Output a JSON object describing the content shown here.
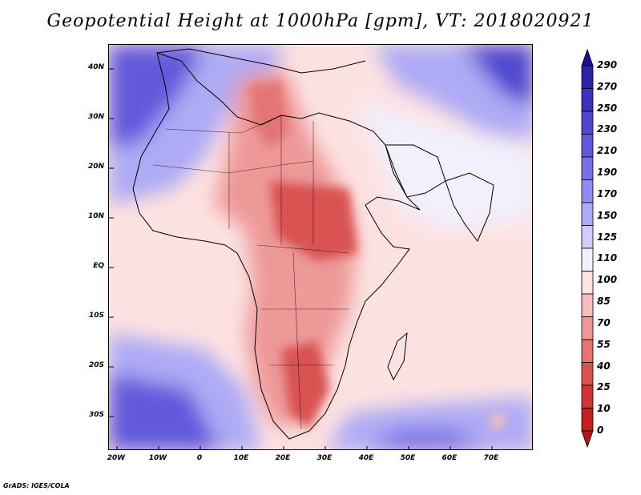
{
  "title": "Geopotential Height at 1000hPa [gpm], VT: 2018020921",
  "credit": "GrADS: IGES/COLA",
  "map": {
    "lat_labels": [
      "40N",
      "30N",
      "20N",
      "10N",
      "EQ",
      "10S",
      "20S",
      "30S"
    ],
    "lon_labels": [
      "20W",
      "10W",
      "0",
      "10E",
      "20E",
      "30E",
      "40E",
      "50E",
      "60E",
      "70E"
    ],
    "region": "Africa, Arabian Peninsula, Indian Ocean"
  },
  "colorbar": {
    "levels": [
      "290",
      "270",
      "250",
      "230",
      "210",
      "190",
      "170",
      "150",
      "125",
      "110",
      "100",
      "85",
      "70",
      "55",
      "40",
      "25",
      "10",
      "0"
    ],
    "colors": [
      "#1d0f8f",
      "#2c21a7",
      "#3c33bd",
      "#5046d0",
      "#6258dc",
      "#7870e6",
      "#928cef",
      "#aeaaf5",
      "#d0cef9",
      "#f1f0fd",
      "#fde2e2",
      "#f7bdbd",
      "#ee9898",
      "#e47474",
      "#d95252",
      "#cf3535",
      "#c41f1f",
      "#b51414"
    ]
  }
}
